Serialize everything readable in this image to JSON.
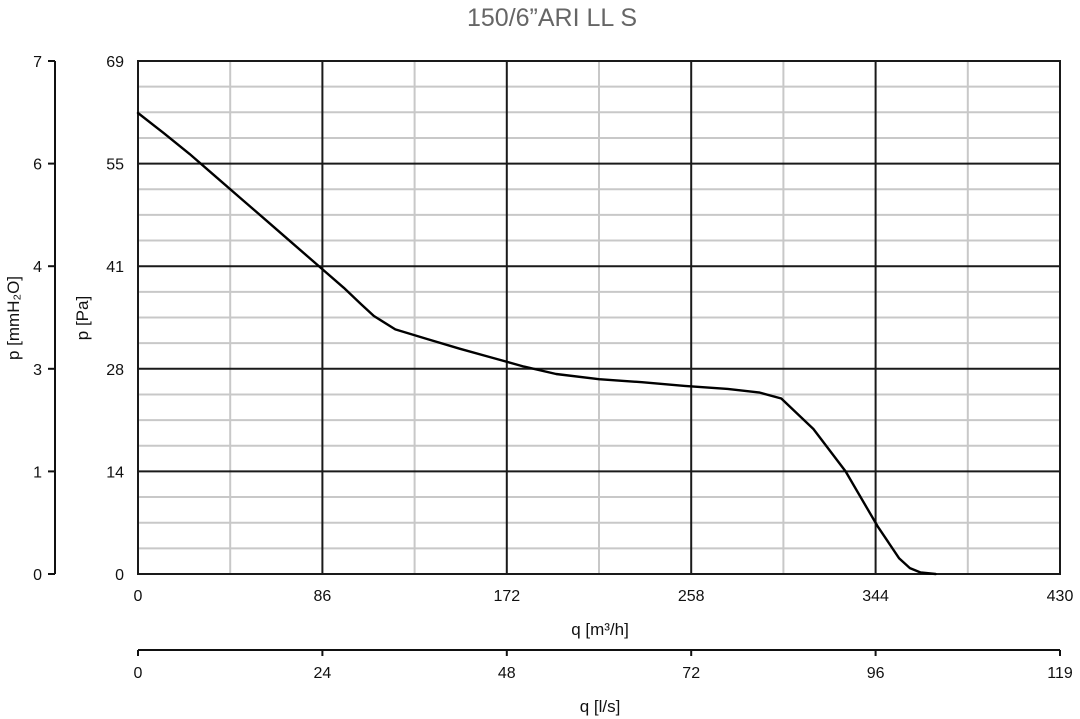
{
  "chart_data": {
    "type": "line",
    "title": "150/6”ARI LL S",
    "xlabel": "q [m³/h]",
    "x2label": "q [l/s]",
    "ylabel": "p [Pa]",
    "y2label": "p [mmH₂O]",
    "xlim": [
      0,
      430
    ],
    "ylim": [
      0,
      69
    ],
    "x_ticks": [
      "0",
      "86",
      "172",
      "258",
      "344",
      "430"
    ],
    "x2_ticks": [
      "0",
      "24",
      "48",
      "72",
      "96",
      "119"
    ],
    "y_ticks": [
      "0",
      "14",
      "28",
      "41",
      "55",
      "69"
    ],
    "y2_ticks": [
      "0",
      "1",
      "3",
      "4",
      "6",
      "7"
    ],
    "grid": true,
    "series": [
      {
        "x": [
          0,
          12,
          24,
          36,
          48,
          60,
          72,
          84,
          96,
          104,
          110,
          120,
          135,
          150,
          165,
          180,
          195,
          215,
          235,
          255,
          275,
          290,
          300,
          315,
          330,
          345,
          355,
          360,
          365,
          372
        ],
        "y": [
          62,
          59.3,
          56.5,
          53.5,
          50.5,
          47.5,
          44.5,
          41.5,
          38.5,
          36.3,
          34.7,
          32.9,
          31.6,
          30.3,
          29.1,
          27.9,
          26.9,
          26.2,
          25.8,
          25.3,
          24.9,
          24.4,
          23.6,
          19.5,
          13.8,
          6.4,
          2.1,
          0.8,
          0.2,
          0
        ]
      }
    ],
    "line_color": "#000000",
    "major_grid_color": "#1a1a1a",
    "minor_grid_color": "#c8c8c8"
  }
}
